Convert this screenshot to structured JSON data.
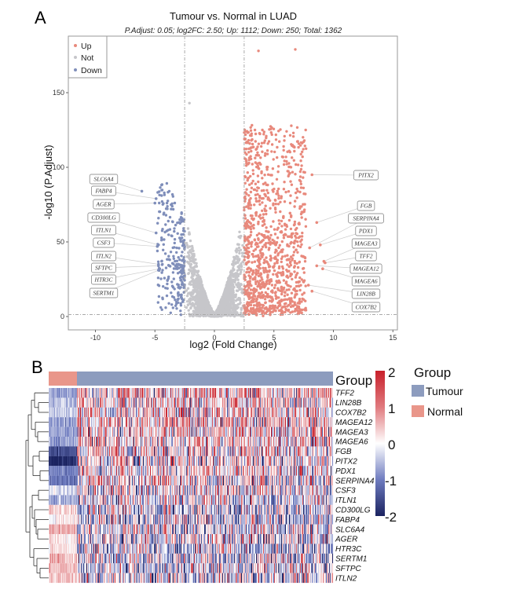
{
  "panels": {
    "a": "A",
    "b": "B"
  },
  "chart_data": [
    {
      "type": "scatter",
      "title": "Tumour vs. Normal in LUAD",
      "subtitle": "P.Adjust:  0.05; log2FC: 2.50; Up: 1112; Down: 250; Total: 1362",
      "xlabel": "log2 (Fold Change)",
      "ylabel": "-log10 (P.Adjust)",
      "xlim": [
        -12.3,
        15.4
      ],
      "ylim": [
        -9,
        188
      ],
      "xticks": [
        "-10",
        "-5",
        "0",
        "5",
        "10",
        "15"
      ],
      "yticks": [
        "0",
        "50",
        "100",
        "150"
      ],
      "thresholds": {
        "log2fc": 2.5,
        "p_adjust": 0.05,
        "neg_log10_p": 1.3
      },
      "counts": {
        "up": 1112,
        "down": 250,
        "total": 1362
      },
      "legend": {
        "position": "top-left",
        "entries": [
          "Up",
          "Not",
          "Down"
        ]
      },
      "colors": {
        "Up": "#E8897C",
        "Not": "#C6C6CA",
        "Down": "#7F8EBA"
      },
      "grid": false,
      "top_points": [
        {
          "x": 3.7,
          "y": 178,
          "group": "Up"
        },
        {
          "x": 6.8,
          "y": 179,
          "group": "Up"
        },
        {
          "x": -2.1,
          "y": 143,
          "group": "Not"
        }
      ],
      "labeled_down": [
        {
          "gene": "SLC6A4",
          "x": -6.1,
          "y": 84
        },
        {
          "gene": "FABP4",
          "x": -4.9,
          "y": 79
        },
        {
          "gene": "AGER",
          "x": -5.0,
          "y": 76
        },
        {
          "gene": "CD300LG",
          "x": -4.9,
          "y": 56
        },
        {
          "gene": "ITLN1",
          "x": -4.7,
          "y": 48
        },
        {
          "gene": "CSF3",
          "x": -4.8,
          "y": 47
        },
        {
          "gene": "ITLN2",
          "x": -4.7,
          "y": 35
        },
        {
          "gene": "SFTPC",
          "x": -4.7,
          "y": 34
        },
        {
          "gene": "HTR3C",
          "x": -4.6,
          "y": 32
        },
        {
          "gene": "SERTM1",
          "x": -4.7,
          "y": 31
        }
      ],
      "labeled_up": [
        {
          "gene": "PITX2",
          "x": 8.2,
          "y": 95
        },
        {
          "gene": "FGB",
          "x": 8.6,
          "y": 63
        },
        {
          "gene": "SERPINA4",
          "x": 8.0,
          "y": 46
        },
        {
          "gene": "PDX1",
          "x": 8.9,
          "y": 48
        },
        {
          "gene": "MAGEA3",
          "x": 9.2,
          "y": 37
        },
        {
          "gene": "TFF2",
          "x": 9.3,
          "y": 36
        },
        {
          "gene": "MAGEA12",
          "x": 8.6,
          "y": 34
        },
        {
          "gene": "MAGEA6",
          "x": 9.1,
          "y": 32
        },
        {
          "gene": "LIN28B",
          "x": 7.9,
          "y": 21
        },
        {
          "gene": "COX7B2",
          "x": 8.2,
          "y": 17
        }
      ]
    },
    {
      "type": "heatmap",
      "annotation_label": "Group",
      "legend_title": "Group",
      "groups": [
        {
          "name": "Tumour",
          "color": "#8D9CBE"
        },
        {
          "name": "Normal",
          "color": "#E9968A"
        }
      ],
      "colorbar": {
        "ticks": [
          "2",
          "1",
          "0",
          "-1",
          "-2"
        ],
        "range": [
          -2,
          2
        ],
        "low": "#1B2360",
        "mid": "#FFFFFF",
        "high": "#C8202B"
      },
      "rows": [
        {
          "gene": "TFF2",
          "normal_mean": -0.7,
          "tumour_mean": 0.3
        },
        {
          "gene": "LIN28B",
          "normal_mean": -0.5,
          "tumour_mean": 0.2
        },
        {
          "gene": "COX7B2",
          "normal_mean": -0.4,
          "tumour_mean": 0.3
        },
        {
          "gene": "MAGEA12",
          "normal_mean": -0.7,
          "tumour_mean": 0.3
        },
        {
          "gene": "MAGEA3",
          "normal_mean": -0.7,
          "tumour_mean": 0.3
        },
        {
          "gene": "MAGEA6",
          "normal_mean": -0.7,
          "tumour_mean": 0.3
        },
        {
          "gene": "FGB",
          "normal_mean": -1.5,
          "tumour_mean": 0.2
        },
        {
          "gene": "PITX2",
          "normal_mean": -2.0,
          "tumour_mean": 0.1
        },
        {
          "gene": "PDX1",
          "normal_mean": -1.0,
          "tumour_mean": 0.1
        },
        {
          "gene": "SERPINA4",
          "normal_mean": -1.1,
          "tumour_mean": 0.1
        },
        {
          "gene": "CSF3",
          "normal_mean": -0.3,
          "tumour_mean": 0.0
        },
        {
          "gene": "ITLN1",
          "normal_mean": -0.6,
          "tumour_mean": -0.1
        },
        {
          "gene": "CD300LG",
          "normal_mean": 0.3,
          "tumour_mean": -0.2
        },
        {
          "gene": "FABP4",
          "normal_mean": 0.1,
          "tumour_mean": -0.2
        },
        {
          "gene": "SLC6A4",
          "normal_mean": 0.6,
          "tumour_mean": -0.1
        },
        {
          "gene": "AGER",
          "normal_mean": 0.2,
          "tumour_mean": -0.1
        },
        {
          "gene": "HTR3C",
          "normal_mean": 0.3,
          "tumour_mean": -0.3
        },
        {
          "gene": "SERTM1",
          "normal_mean": 0.5,
          "tumour_mean": -0.2
        },
        {
          "gene": "SFTPC",
          "normal_mean": 0.5,
          "tumour_mean": -0.2
        },
        {
          "gene": "ITLN2",
          "normal_mean": 0.4,
          "tumour_mean": -0.2
        }
      ]
    }
  ]
}
